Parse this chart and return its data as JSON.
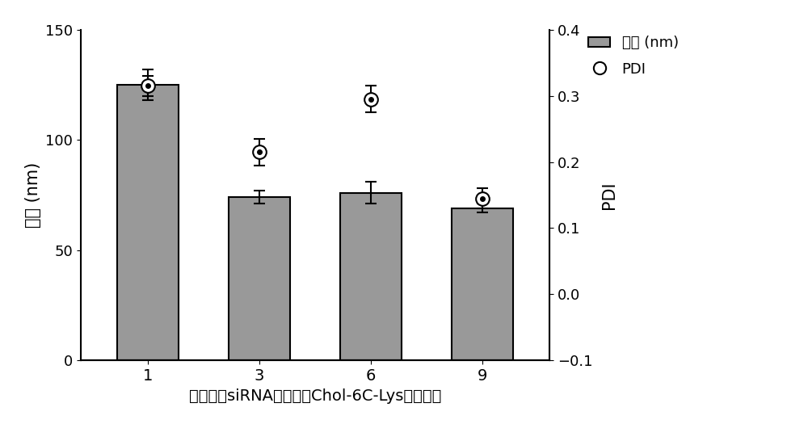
{
  "categories": [
    "1",
    "3",
    "6",
    "9"
  ],
  "bar_values": [
    125,
    74,
    76,
    69
  ],
  "bar_errors": [
    7,
    3,
    5,
    2
  ],
  "pdi_values": [
    0.315,
    0.215,
    0.295,
    0.145
  ],
  "pdi_errors": [
    0.015,
    0.02,
    0.02,
    0.015
  ],
  "bar_color": "#999999",
  "bar_edgecolor": "#000000",
  "ylabel_left": "粒径 (nm)",
  "ylabel_right": "PDI",
  "xlabel": "流速比（siRNA水溶液：Chol-6C-Lys水溶液）",
  "ylim_left": [
    0,
    150
  ],
  "ylim_right": [
    -0.1,
    0.4
  ],
  "yticks_left": [
    0,
    50,
    100,
    150
  ],
  "yticks_right": [
    -0.1,
    0.0,
    0.1,
    0.2,
    0.3,
    0.4
  ],
  "legend_bar_label": "粒径 (nm)",
  "legend_pdi_label": "PDI",
  "background_color": "#ffffff",
  "bar_width": 0.55
}
